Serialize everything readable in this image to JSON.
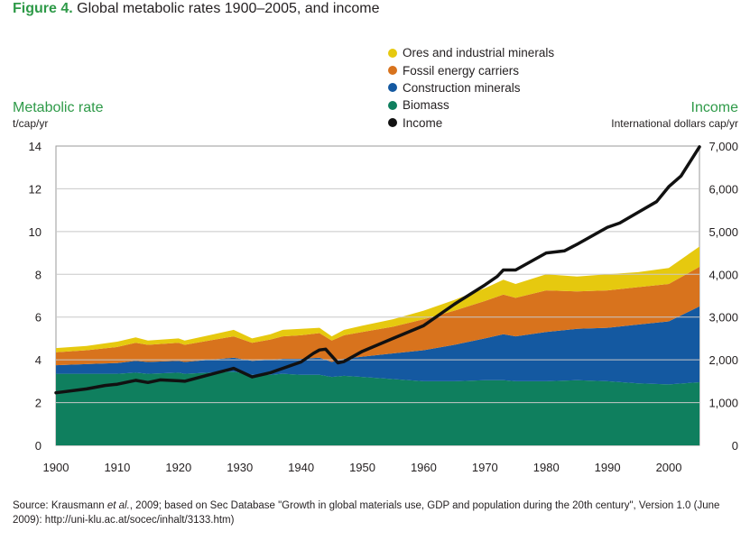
{
  "header": {
    "figure_label": "Figure 4.",
    "title_rest": "Global metabolic rates 1900–2005, and income"
  },
  "legend": {
    "items": [
      {
        "label": "Ores and industrial minerals",
        "color": "#e6c90f"
      },
      {
        "label": "Fossil energy carriers",
        "color": "#d8731d"
      },
      {
        "label": "Construction minerals",
        "color": "#1459a1"
      },
      {
        "label": "Biomass",
        "color": "#0f7f5e"
      },
      {
        "label": "Income",
        "color": "#111111"
      }
    ]
  },
  "axes": {
    "left_title": "Metabolic rate",
    "left_unit": "t/cap/yr",
    "right_title": "Income",
    "right_unit": "International dollars cap/yr"
  },
  "source": {
    "prefix": "Source: Krausmann ",
    "etal": "et al.",
    "rest": ", 2009; based on Sec Database \"Growth in global materials use, GDP and population during the 20th century\", Version 1.0 (June 2009): http://uni-klu.ac.at/socec/inhalt/3133.htm)"
  },
  "chart_data": {
    "type": "area",
    "title": "Global metabolic rates 1900–2005, and income",
    "xlabel": "",
    "ylabel": "Metabolic rate t/cap/yr",
    "y2label": "Income International dollars cap/yr",
    "xlim": [
      1900,
      2005
    ],
    "ylim": [
      0,
      14
    ],
    "y2lim": [
      0,
      7000
    ],
    "xticks": [
      1900,
      1910,
      1920,
      1930,
      1940,
      1950,
      1960,
      1970,
      1980,
      1990,
      2000
    ],
    "xtick_labels": [
      "1900",
      "1910",
      "1920",
      "1930",
      "1940",
      "1950",
      "1960",
      "1970",
      "1980",
      "1990",
      "2000"
    ],
    "yticks": [
      0,
      2,
      4,
      6,
      8,
      10,
      12,
      14
    ],
    "ytick_labels": [
      "0",
      "2",
      "4",
      "6",
      "8",
      "10",
      "12",
      "14"
    ],
    "y2ticks": [
      0,
      1000,
      2000,
      3000,
      4000,
      5000,
      6000,
      7000
    ],
    "y2tick_labels": [
      "0",
      "1,000",
      "2,000",
      "3,000",
      "4,000",
      "5,000",
      "6,000",
      "7,000"
    ],
    "grid": true,
    "x": [
      1900,
      1905,
      1910,
      1913,
      1915,
      1920,
      1921,
      1925,
      1929,
      1932,
      1935,
      1937,
      1940,
      1943,
      1945,
      1947,
      1950,
      1955,
      1960,
      1965,
      1970,
      1973,
      1975,
      1980,
      1985,
      1990,
      1995,
      2000,
      2005
    ],
    "stacked_series": [
      {
        "name": "Biomass",
        "color": "#0f7f5e",
        "values": [
          3.35,
          3.35,
          3.35,
          3.4,
          3.35,
          3.4,
          3.35,
          3.4,
          3.45,
          3.3,
          3.3,
          3.35,
          3.3,
          3.3,
          3.2,
          3.25,
          3.2,
          3.1,
          3.0,
          3.0,
          3.05,
          3.05,
          3.0,
          3.0,
          3.05,
          3.0,
          2.9,
          2.85,
          2.95
        ]
      },
      {
        "name": "Construction minerals",
        "color": "#1459a1",
        "values": [
          0.4,
          0.45,
          0.5,
          0.55,
          0.55,
          0.55,
          0.55,
          0.6,
          0.65,
          0.65,
          0.7,
          0.7,
          0.75,
          0.8,
          0.7,
          0.8,
          0.95,
          1.2,
          1.45,
          1.7,
          1.95,
          2.15,
          2.1,
          2.3,
          2.4,
          2.5,
          2.75,
          2.95,
          3.55
        ]
      },
      {
        "name": "Fossil energy carriers",
        "color": "#d8731d",
        "values": [
          0.6,
          0.65,
          0.75,
          0.85,
          0.8,
          0.85,
          0.8,
          0.9,
          1.0,
          0.85,
          0.95,
          1.05,
          1.1,
          1.15,
          1.0,
          1.1,
          1.15,
          1.25,
          1.45,
          1.6,
          1.75,
          1.85,
          1.8,
          1.95,
          1.75,
          1.75,
          1.75,
          1.75,
          1.85
        ]
      },
      {
        "name": "Ores and industrial minerals",
        "color": "#e6c90f",
        "values": [
          0.2,
          0.2,
          0.25,
          0.25,
          0.2,
          0.2,
          0.2,
          0.25,
          0.3,
          0.2,
          0.25,
          0.3,
          0.3,
          0.25,
          0.2,
          0.25,
          0.3,
          0.35,
          0.4,
          0.5,
          0.6,
          0.7,
          0.65,
          0.75,
          0.7,
          0.75,
          0.7,
          0.75,
          0.95
        ]
      }
    ],
    "line_series": {
      "name": "Income",
      "color": "#111111",
      "axis": "right",
      "x": [
        1900,
        1905,
        1908,
        1910,
        1913,
        1915,
        1917,
        1920,
        1921,
        1925,
        1929,
        1932,
        1935,
        1937,
        1940,
        1942,
        1943,
        1944,
        1946,
        1947,
        1950,
        1955,
        1960,
        1965,
        1970,
        1972,
        1973,
        1975,
        1980,
        1983,
        1985,
        1990,
        1992,
        1995,
        1998,
        2000,
        2002,
        2005
      ],
      "values": [
        1230,
        1320,
        1400,
        1430,
        1520,
        1470,
        1530,
        1510,
        1500,
        1650,
        1800,
        1600,
        1700,
        1800,
        1950,
        2150,
        2230,
        2250,
        1930,
        1960,
        2200,
        2500,
        2800,
        3300,
        3750,
        3950,
        4100,
        4100,
        4500,
        4550,
        4700,
        5100,
        5200,
        5450,
        5700,
        6050,
        6300,
        6980
      ]
    }
  }
}
